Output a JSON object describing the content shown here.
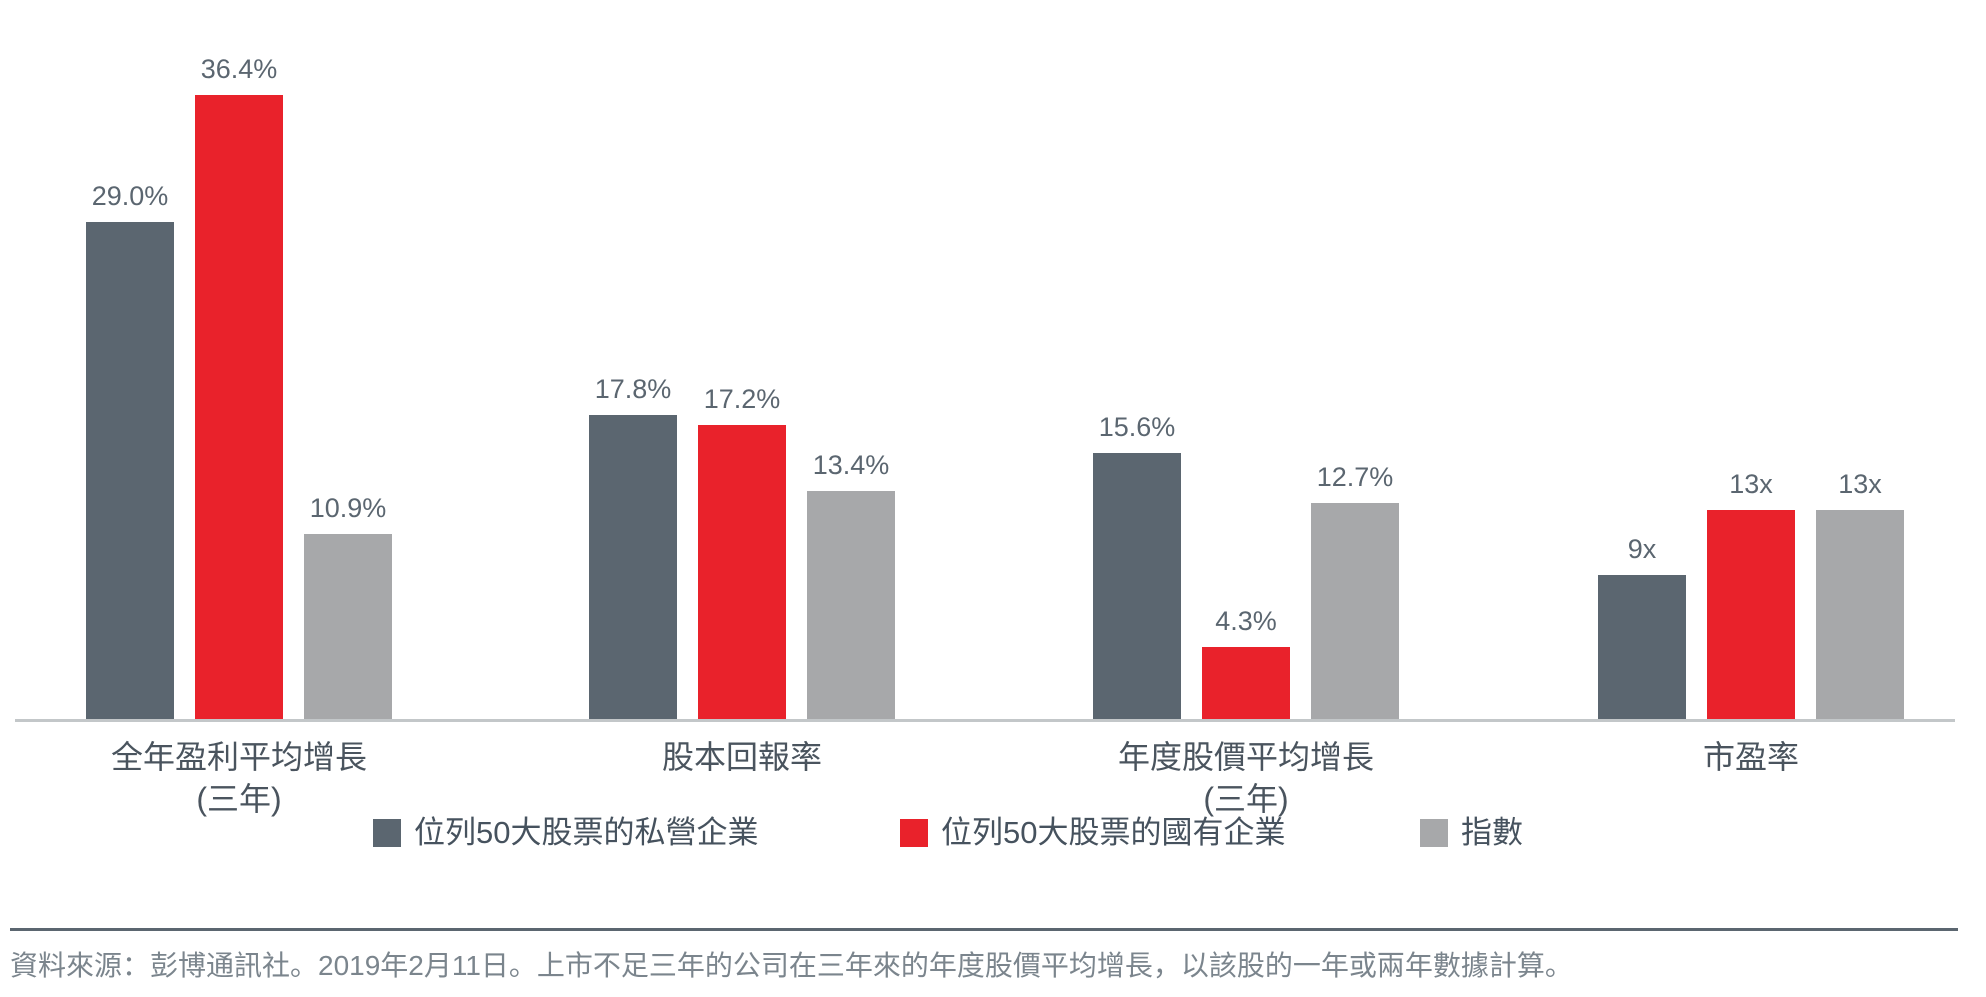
{
  "chart_data": {
    "type": "bar",
    "title": "",
    "categories": [
      {
        "line1": "全年盈利平均增長",
        "line2": "(三年)",
        "unit": "%"
      },
      {
        "line1": "股本回報率",
        "line2": "",
        "unit": "%"
      },
      {
        "line1": "年度股價平均增長",
        "line2": "(三年)",
        "unit": "%"
      },
      {
        "line1": "市盈率",
        "line2": "",
        "unit": "x"
      }
    ],
    "series": [
      {
        "name": "位列50大股票的私營企業",
        "key": "private",
        "color": "#5B6670",
        "values": [
          29.0,
          17.8,
          15.6,
          9
        ],
        "labels": [
          "29.0%",
          "17.8%",
          "15.6%",
          "9x"
        ]
      },
      {
        "name": "位列50大股票的國有企業",
        "key": "soe",
        "color": "#E9222B",
        "values": [
          36.4,
          17.2,
          4.3,
          13
        ],
        "labels": [
          "36.4%",
          "17.2%",
          "4.3%",
          "13x"
        ]
      },
      {
        "name": "指數",
        "key": "index",
        "color": "#A7A8AA",
        "values": [
          10.9,
          13.4,
          12.7,
          13
        ],
        "labels": [
          "10.9%",
          "13.4%",
          "12.7%",
          "13x"
        ]
      }
    ],
    "legend_position": "bottom",
    "grid": false,
    "value_axis_visible": false,
    "data_labels_visible": true
  },
  "colors": {
    "axis_line": "#C3C7C9",
    "value_label_text": "#5B6670",
    "category_label_text": "#4A545E",
    "legend_text": "#46525E",
    "footer_rule": "#5B6670",
    "footer_text": "#7B858D"
  },
  "footer": {
    "text": "資料來源：彭博通訊社。2019年2月11日。上市不足三年的公司在三年來的年度股價平均增長，以該股的一年或兩年數據計算。"
  }
}
